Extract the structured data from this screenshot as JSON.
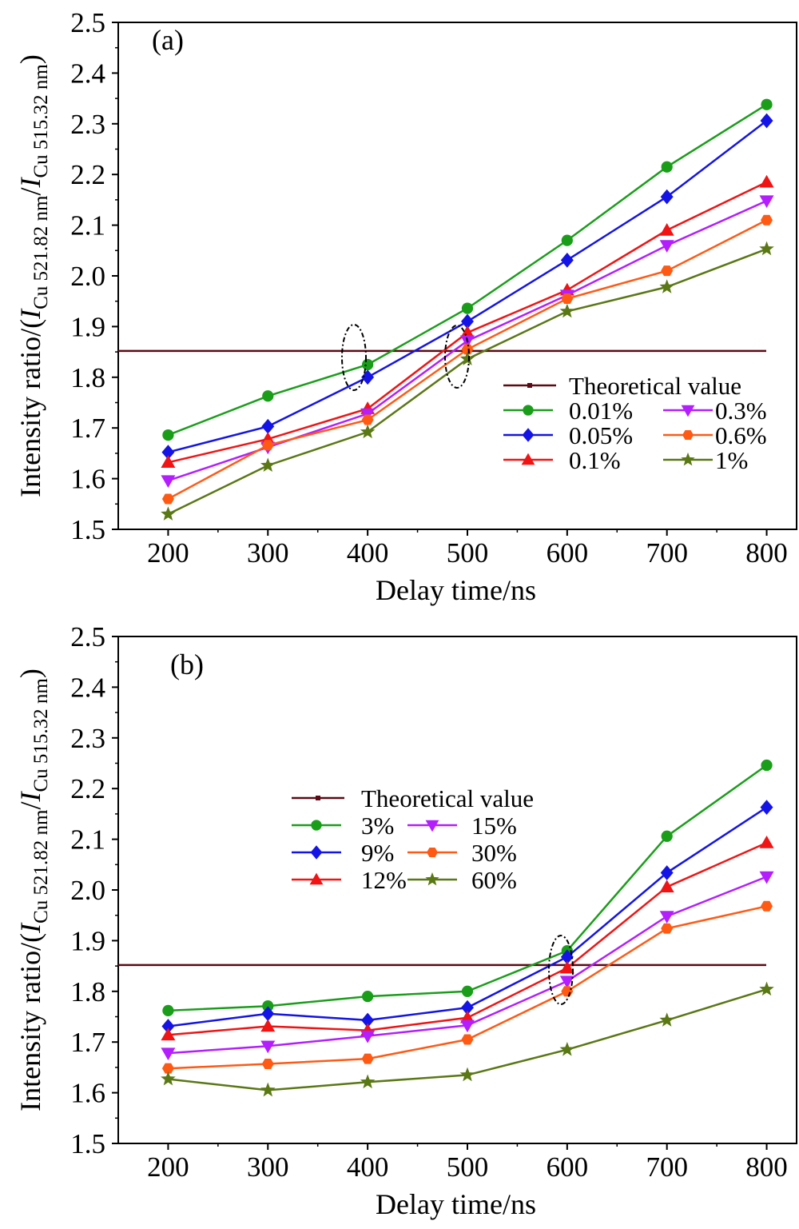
{
  "chart_data": [
    {
      "type": "line",
      "panel_label": "(a)",
      "xlabel": "Delay time/ns",
      "ylabel": {
        "prefix": "Intensity ratio/(",
        "i1": "I",
        "sub1": "Cu 521.82 nm",
        "slash": "/",
        "i2": "I",
        "sub2": "Cu 515.32 nm",
        "suffix": ")"
      },
      "x": [
        200,
        300,
        400,
        500,
        600,
        700,
        800
      ],
      "x_ticks": [
        "200",
        "300",
        "400",
        "500",
        "600",
        "700",
        "800"
      ],
      "xlim": [
        150,
        830
      ],
      "ylim": [
        1.5,
        2.5
      ],
      "y_ticks": [
        "1.5",
        "1.6",
        "1.7",
        "1.8",
        "1.9",
        "2.0",
        "2.1",
        "2.2",
        "2.3",
        "2.4",
        "2.5"
      ],
      "theoretical": {
        "name": "Theoretical value",
        "value": 1.852,
        "color": "#5c0a14"
      },
      "series": [
        {
          "name": "0.01%",
          "marker": "circle",
          "color": "#1a9e1a",
          "values": [
            1.686,
            1.763,
            1.825,
            1.936,
            2.07,
            2.215,
            2.338
          ]
        },
        {
          "name": "0.05%",
          "marker": "diamond",
          "color": "#1414e6",
          "values": [
            1.652,
            1.703,
            1.8,
            1.91,
            2.031,
            2.156,
            2.306
          ]
        },
        {
          "name": "0.1%",
          "marker": "triangle",
          "color": "#f01414",
          "values": [
            1.632,
            1.678,
            1.738,
            1.888,
            1.972,
            2.09,
            2.185
          ]
        },
        {
          "name": "0.3%",
          "marker": "triangle-down",
          "color": "#b41eff",
          "values": [
            1.596,
            1.662,
            1.728,
            1.872,
            1.962,
            2.06,
            2.148
          ]
        },
        {
          "name": "0.6%",
          "marker": "hexagon",
          "color": "#ff5a14",
          "values": [
            1.56,
            1.666,
            1.716,
            1.855,
            1.955,
            2.01,
            2.11
          ]
        },
        {
          "name": "1%",
          "marker": "star",
          "color": "#5a7814",
          "values": [
            1.53,
            1.626,
            1.692,
            1.836,
            1.93,
            1.978,
            2.053
          ]
        }
      ],
      "legend": {
        "placement": "lower-right",
        "columns": 2
      }
    },
    {
      "type": "line",
      "panel_label": "(b)",
      "xlabel": "Delay time/ns",
      "ylabel": {
        "prefix": "Intensity ratio/(",
        "i1": "I",
        "sub1": "Cu 521.82 nm",
        "slash": "/",
        "i2": "I",
        "sub2": "Cu 515.32 nm",
        "suffix": ")"
      },
      "x": [
        200,
        300,
        400,
        500,
        600,
        700,
        800
      ],
      "x_ticks": [
        "200",
        "300",
        "400",
        "500",
        "600",
        "700",
        "800"
      ],
      "xlim": [
        150,
        830
      ],
      "ylim": [
        1.5,
        2.5
      ],
      "y_ticks": [
        "1.5",
        "1.6",
        "1.7",
        "1.8",
        "1.9",
        "2.0",
        "2.1",
        "2.2",
        "2.3",
        "2.4",
        "2.5"
      ],
      "theoretical": {
        "name": "Theoretical value",
        "value": 1.852,
        "color": "#5c0a14"
      },
      "series": [
        {
          "name": "3%",
          "marker": "circle",
          "color": "#1a9e1a",
          "values": [
            1.762,
            1.771,
            1.79,
            1.8,
            1.88,
            2.106,
            2.246
          ]
        },
        {
          "name": "9%",
          "marker": "diamond",
          "color": "#1414e6",
          "values": [
            1.731,
            1.756,
            1.743,
            1.768,
            1.868,
            2.034,
            2.163
          ]
        },
        {
          "name": "12%",
          "marker": "triangle",
          "color": "#f01414",
          "values": [
            1.714,
            1.731,
            1.723,
            1.748,
            1.846,
            2.006,
            2.093
          ]
        },
        {
          "name": "15%",
          "marker": "triangle-down",
          "color": "#b41eff",
          "values": [
            1.678,
            1.692,
            1.712,
            1.733,
            1.82,
            1.948,
            2.026
          ]
        },
        {
          "name": "30%",
          "marker": "hexagon",
          "color": "#ff5a14",
          "values": [
            1.648,
            1.657,
            1.667,
            1.705,
            1.8,
            1.924,
            1.968
          ]
        },
        {
          "name": "60%",
          "marker": "star",
          "color": "#5a7814",
          "values": [
            1.627,
            1.605,
            1.621,
            1.635,
            1.685,
            1.743,
            1.804
          ]
        }
      ],
      "legend": {
        "placement": "center-left",
        "columns": 2
      }
    }
  ]
}
